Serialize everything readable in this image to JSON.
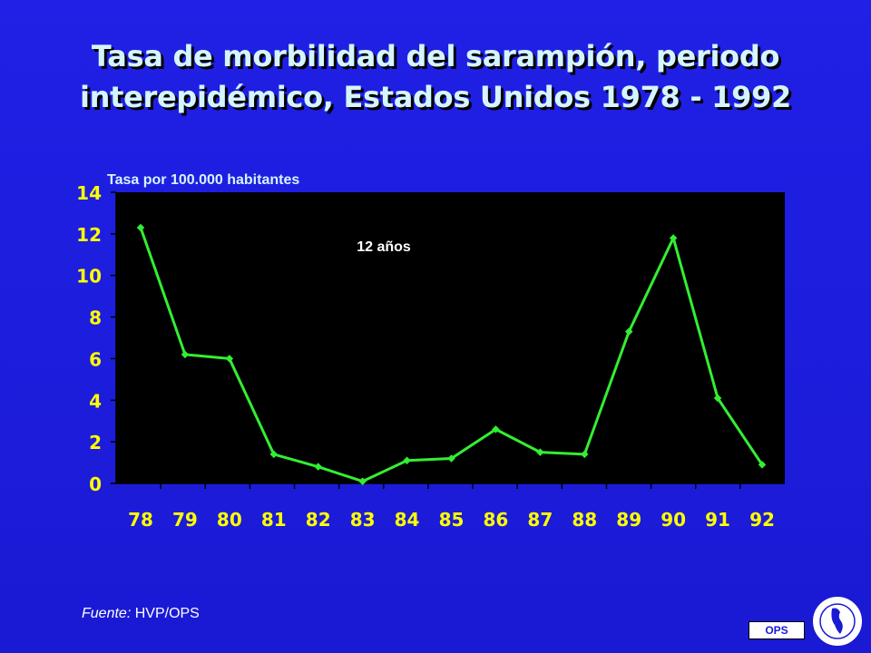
{
  "title": {
    "line1": "Tasa de morbilidad del sarampión, periodo",
    "line2": "interepidémico, Estados Unidos 1978 - 1992"
  },
  "chart_data": {
    "type": "line",
    "categories": [
      "78",
      "79",
      "80",
      "81",
      "82",
      "83",
      "84",
      "85",
      "86",
      "87",
      "88",
      "89",
      "90",
      "91",
      "92"
    ],
    "series": [
      {
        "values": [
          12.3,
          6.2,
          6.0,
          1.4,
          0.8,
          0.1,
          1.1,
          1.2,
          2.6,
          1.5,
          1.4,
          7.3,
          11.8,
          4.1,
          0.9
        ]
      }
    ],
    "ylabel": "Tasa por 100.000 habitantes",
    "yticks": [
      "0",
      "2",
      "4",
      "6",
      "8",
      "10",
      "12",
      "14"
    ],
    "ylim": [
      0,
      14
    ],
    "annotation": "12 años",
    "grid": false,
    "colors": {
      "line": "#33ee33",
      "plot_bg": "#000000",
      "ticks": "#ffff00"
    }
  },
  "footer": {
    "source_label": "Fuente:",
    "source_value": "HVP/OPS",
    "badge": "OPS"
  }
}
